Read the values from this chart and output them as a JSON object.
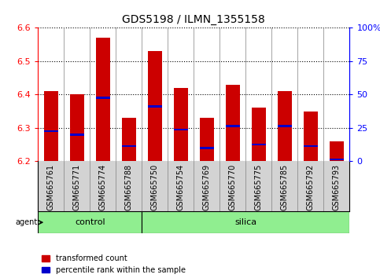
{
  "title": "GDS5198 / ILMN_1355158",
  "samples": [
    "GSM665761",
    "GSM665771",
    "GSM665774",
    "GSM665788",
    "GSM665750",
    "GSM665754",
    "GSM665769",
    "GSM665770",
    "GSM665775",
    "GSM665785",
    "GSM665792",
    "GSM665793"
  ],
  "groups": [
    "control",
    "control",
    "control",
    "control",
    "silica",
    "silica",
    "silica",
    "silica",
    "silica",
    "silica",
    "silica",
    "silica"
  ],
  "transformed_count": [
    6.41,
    6.4,
    6.57,
    6.33,
    6.53,
    6.42,
    6.33,
    6.43,
    6.36,
    6.41,
    6.35,
    6.26
  ],
  "percentile_rank": [
    6.29,
    6.28,
    6.39,
    6.245,
    6.365,
    6.295,
    6.24,
    6.305,
    6.25,
    6.305,
    6.245,
    6.205
  ],
  "ylim": [
    6.2,
    6.6
  ],
  "yticks_left": [
    6.2,
    6.3,
    6.4,
    6.5,
    6.6
  ],
  "yticks_right_vals": [
    0,
    25,
    50,
    75,
    100
  ],
  "yticks_right_mapped": [
    6.2,
    6.3,
    6.4,
    6.5,
    6.6
  ],
  "bar_color": "#cc0000",
  "percentile_color": "#0000cc",
  "bar_width": 0.55,
  "group_box_color": "#90EE90",
  "sample_bg_color": "#d3d3d3",
  "legend_items": [
    "transformed count",
    "percentile rank within the sample"
  ]
}
